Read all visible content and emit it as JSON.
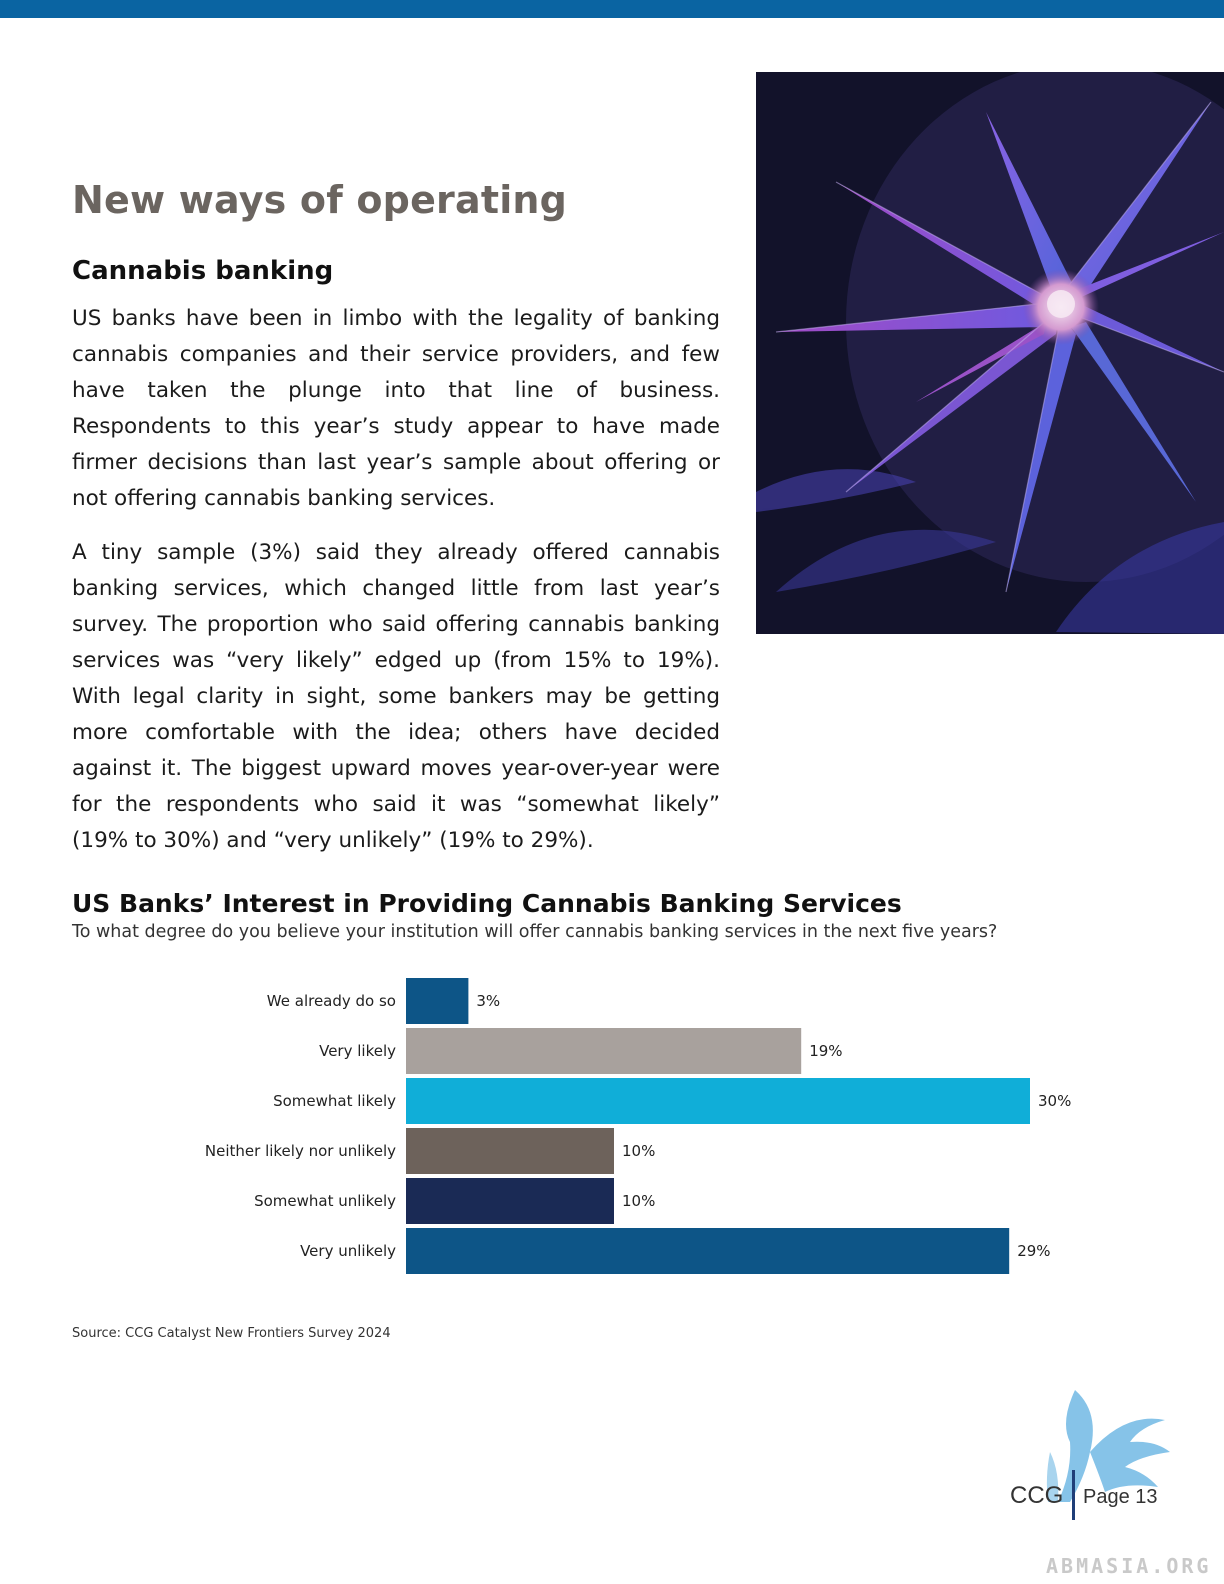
{
  "header": {
    "bar_color": "#0a64a2"
  },
  "image": {
    "icon": "cannabis-leaf-photo"
  },
  "section": {
    "title": "New ways of operating"
  },
  "article": {
    "subtitle": "Cannabis banking",
    "paragraphs": [
      "US banks have been in limbo with the legality of banking cannabis companies and their service providers, and few have taken the plunge into that line of business. Respondents to this year’s study appear to have made firmer decisions than last year’s sample about offering or not offering cannabis banking services.",
      "A tiny sample (3%) said they already offered cannabis banking services, which changed little from last year’s survey. The proportion who said offering cannabis banking services was “very likely” edged up (from 15% to 19%). With legal clarity in sight, some bankers may be getting more comfortable with the idea; others have decided against it. The biggest upward moves year-over-year were for the respondents who said it was “somewhat likely” (19% to 30%) and “very unlikely” (19% to 29%)."
    ]
  },
  "chart_data": {
    "type": "bar",
    "orientation": "horizontal",
    "title": "US Banks’ Interest in Providing Cannabis Banking Services",
    "subtitle": "To what degree do you believe your institution will offer cannabis banking services in the next five years?",
    "categories": [
      "We already do so",
      "Very likely",
      "Somewhat likely",
      "Neither likely nor unlikely",
      "Somewhat unlikely",
      "Very unlikely"
    ],
    "values": [
      3,
      19,
      30,
      10,
      10,
      29
    ],
    "value_labels": [
      "3%",
      "19%",
      "30%",
      "10%",
      "10%",
      "29%"
    ],
    "colors": [
      "#0d5587",
      "#a8a19d",
      "#10aed8",
      "#6d625b",
      "#1a2a55",
      "#0d5587"
    ],
    "xlim": [
      0,
      30
    ],
    "grid": false,
    "legend": "none",
    "source": "Source: CCG Catalyst New Frontiers Survey 2024"
  },
  "footer": {
    "brand": "CCG",
    "page_label": "Page 13",
    "watermark": "ABMASIA.ORG",
    "logo_icon": "griffin-logo-icon"
  }
}
